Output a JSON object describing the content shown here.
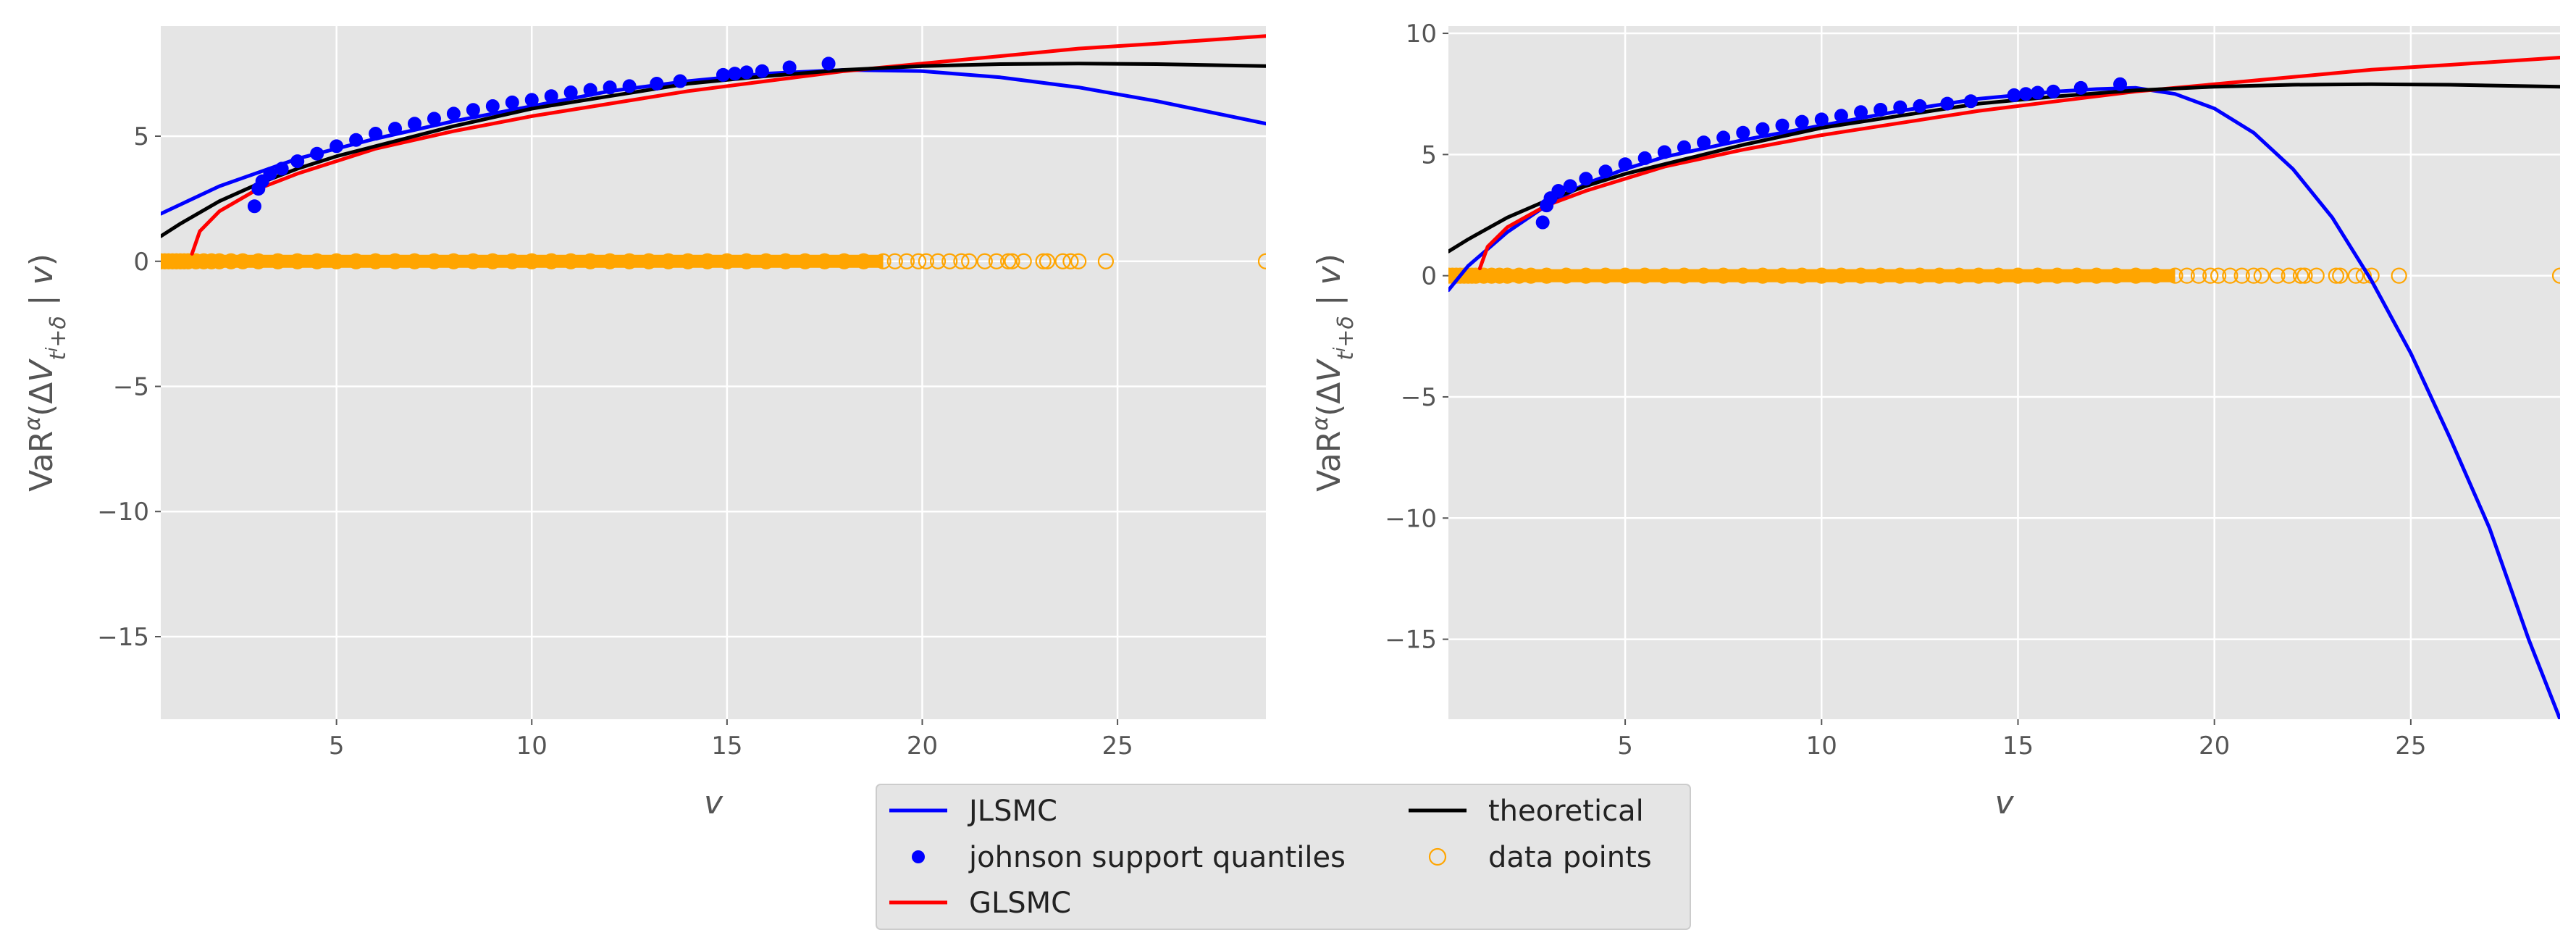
{
  "chart_data": [
    {
      "type": "line",
      "panel": "left",
      "xlabel": "v",
      "ylabel": "VaR^α(ΔV_{t_i+δ} | v)",
      "xlim": [
        0.5,
        28.8
      ],
      "ylim": [
        -18.3,
        9.4
      ],
      "xticks": [
        5,
        10,
        15,
        20,
        25
      ],
      "yticks": [
        -15,
        -10,
        -5,
        0,
        5
      ],
      "grid": true,
      "series": [
        {
          "name": "JLSMC",
          "kind": "line",
          "color": "#0000ff",
          "x": [
            0.5,
            2,
            4,
            6,
            8,
            10,
            12,
            14,
            16,
            18,
            20,
            22,
            24,
            26,
            28.8
          ],
          "y": [
            1.9,
            3.0,
            4.1,
            4.9,
            5.6,
            6.2,
            6.8,
            7.2,
            7.5,
            7.65,
            7.6,
            7.35,
            6.95,
            6.4,
            5.5
          ]
        },
        {
          "name": "johnson support quantiles",
          "kind": "scatter",
          "color": "#0000ff",
          "x": [
            2.9,
            3.0,
            3.1,
            3.3,
            3.6,
            4.0,
            4.5,
            5.0,
            5.5,
            6.0,
            6.5,
            7.0,
            7.5,
            8.0,
            8.5,
            9.0,
            9.5,
            10.0,
            10.5,
            11.0,
            11.5,
            12.0,
            12.5,
            13.2,
            13.8,
            14.9,
            15.2,
            15.5,
            15.9,
            16.6,
            17.6
          ],
          "y": [
            2.2,
            2.9,
            3.2,
            3.5,
            3.7,
            4.0,
            4.3,
            4.6,
            4.85,
            5.1,
            5.3,
            5.5,
            5.7,
            5.9,
            6.05,
            6.2,
            6.35,
            6.45,
            6.6,
            6.75,
            6.85,
            6.95,
            7.0,
            7.1,
            7.2,
            7.45,
            7.5,
            7.55,
            7.6,
            7.75,
            7.9
          ]
        },
        {
          "name": "GLSMC",
          "kind": "line",
          "color": "#ff0000",
          "x": [
            1.3,
            1.5,
            2,
            3,
            4,
            6,
            8,
            10,
            12,
            14,
            16,
            18,
            20,
            22,
            24,
            26,
            28.8
          ],
          "y": [
            0.3,
            1.2,
            2.0,
            2.9,
            3.5,
            4.5,
            5.2,
            5.8,
            6.3,
            6.8,
            7.2,
            7.6,
            7.9,
            8.2,
            8.5,
            8.7,
            9.0
          ]
        },
        {
          "name": "theoretical",
          "kind": "line",
          "color": "#000000",
          "x": [
            0.5,
            1,
            2,
            3,
            4,
            5,
            6,
            8,
            10,
            12,
            14,
            16,
            18,
            20,
            22,
            24,
            26,
            28.8
          ],
          "y": [
            1.0,
            1.5,
            2.4,
            3.1,
            3.7,
            4.2,
            4.6,
            5.4,
            6.1,
            6.6,
            7.1,
            7.4,
            7.65,
            7.8,
            7.88,
            7.9,
            7.88,
            7.8
          ]
        },
        {
          "name": "data points",
          "kind": "scatter-open",
          "color": "#ffa500",
          "x": [
            0.5,
            0.6,
            0.7,
            0.8,
            0.9,
            1.0,
            1.1,
            1.2,
            1.4,
            1.6,
            1.8,
            2.0,
            2.3,
            2.6,
            3.0,
            3.5,
            4.0,
            4.5,
            5.0,
            5.5,
            6.0,
            6.5,
            7.0,
            7.5,
            8.0,
            8.5,
            9.0,
            9.5,
            10.0,
            10.5,
            11.0,
            11.5,
            12.0,
            12.5,
            13.0,
            13.5,
            14.0,
            14.5,
            15.0,
            15.5,
            16.0,
            16.5,
            17.0,
            17.5,
            18.0,
            18.5,
            19.0,
            19.3,
            19.6,
            19.9,
            20.1,
            20.4,
            20.7,
            21.0,
            21.2,
            21.6,
            21.9,
            22.2,
            22.3,
            22.6,
            23.1,
            23.2,
            23.6,
            23.8,
            24.0,
            24.7,
            28.8
          ],
          "y": [
            0,
            0,
            0,
            0,
            0,
            0,
            0,
            0,
            0,
            0,
            0,
            0,
            0,
            0,
            0,
            0,
            0,
            0,
            0,
            0,
            0,
            0,
            0,
            0,
            0,
            0,
            0,
            0,
            0,
            0,
            0,
            0,
            0,
            0,
            0,
            0,
            0,
            0,
            0,
            0,
            0,
            0,
            0,
            0,
            0,
            0,
            0,
            0,
            0,
            0,
            0,
            0,
            0,
            0,
            0,
            0,
            0,
            0,
            0,
            0,
            0,
            0,
            0,
            0,
            0,
            0,
            0
          ]
        }
      ]
    },
    {
      "type": "line",
      "panel": "right",
      "xlabel": "v",
      "ylabel": "VaR^α(ΔV_{t_i+δ} | v)",
      "xlim": [
        0.5,
        28.8
      ],
      "ylim": [
        -18.3,
        10.3
      ],
      "xticks": [
        5,
        10,
        15,
        20,
        25
      ],
      "yticks": [
        -15,
        -10,
        -5,
        0,
        5,
        10
      ],
      "grid": true,
      "series": [
        {
          "name": "JLSMC",
          "kind": "line",
          "color": "#0000ff",
          "x": [
            0.5,
            1,
            2,
            3,
            4,
            5,
            6,
            8,
            10,
            12,
            14,
            16,
            17,
            18,
            19,
            20,
            21,
            22,
            23,
            24,
            25,
            26,
            27,
            28,
            28.8
          ],
          "y": [
            -0.6,
            0.4,
            1.8,
            2.9,
            3.8,
            4.4,
            4.9,
            5.6,
            6.2,
            6.8,
            7.3,
            7.6,
            7.7,
            7.75,
            7.5,
            6.9,
            5.9,
            4.4,
            2.4,
            -0.2,
            -3.2,
            -6.7,
            -10.4,
            -15.0,
            -18.3
          ]
        },
        {
          "name": "johnson support quantiles",
          "kind": "scatter",
          "color": "#0000ff",
          "x": [
            2.9,
            3.0,
            3.1,
            3.3,
            3.6,
            4.0,
            4.5,
            5.0,
            5.5,
            6.0,
            6.5,
            7.0,
            7.5,
            8.0,
            8.5,
            9.0,
            9.5,
            10.0,
            10.5,
            11.0,
            11.5,
            12.0,
            12.5,
            13.2,
            13.8,
            14.9,
            15.2,
            15.5,
            15.9,
            16.6,
            17.6
          ],
          "y": [
            2.2,
            2.9,
            3.2,
            3.5,
            3.7,
            4.0,
            4.3,
            4.6,
            4.85,
            5.1,
            5.3,
            5.5,
            5.7,
            5.9,
            6.05,
            6.2,
            6.35,
            6.45,
            6.6,
            6.75,
            6.85,
            6.95,
            7.0,
            7.1,
            7.2,
            7.45,
            7.5,
            7.55,
            7.6,
            7.75,
            7.9
          ]
        },
        {
          "name": "GLSMC",
          "kind": "line",
          "color": "#ff0000",
          "x": [
            1.3,
            1.5,
            2,
            3,
            4,
            6,
            8,
            10,
            12,
            14,
            16,
            18,
            20,
            22,
            24,
            26,
            28.8
          ],
          "y": [
            0.3,
            1.2,
            2.0,
            2.9,
            3.5,
            4.5,
            5.2,
            5.8,
            6.3,
            6.8,
            7.2,
            7.6,
            7.9,
            8.2,
            8.5,
            8.7,
            9.0
          ]
        },
        {
          "name": "theoretical",
          "kind": "line",
          "color": "#000000",
          "x": [
            0.5,
            1,
            2,
            3,
            4,
            5,
            6,
            8,
            10,
            12,
            14,
            16,
            18,
            20,
            22,
            24,
            26,
            28.8
          ],
          "y": [
            1.0,
            1.5,
            2.4,
            3.1,
            3.7,
            4.2,
            4.6,
            5.4,
            6.1,
            6.6,
            7.1,
            7.4,
            7.65,
            7.8,
            7.88,
            7.9,
            7.88,
            7.8
          ]
        },
        {
          "name": "data points",
          "kind": "scatter-open",
          "color": "#ffa500",
          "x": [
            0.5,
            0.6,
            0.7,
            0.8,
            0.9,
            1.0,
            1.1,
            1.2,
            1.4,
            1.6,
            1.8,
            2.0,
            2.3,
            2.6,
            3.0,
            3.5,
            4.0,
            4.5,
            5.0,
            5.5,
            6.0,
            6.5,
            7.0,
            7.5,
            8.0,
            8.5,
            9.0,
            9.5,
            10.0,
            10.5,
            11.0,
            11.5,
            12.0,
            12.5,
            13.0,
            13.5,
            14.0,
            14.5,
            15.0,
            15.5,
            16.0,
            16.5,
            17.0,
            17.5,
            18.0,
            18.5,
            19.0,
            19.3,
            19.6,
            19.9,
            20.1,
            20.4,
            20.7,
            21.0,
            21.2,
            21.6,
            21.9,
            22.2,
            22.3,
            22.6,
            23.1,
            23.2,
            23.6,
            23.8,
            24.0,
            24.7,
            28.8
          ],
          "y": [
            0,
            0,
            0,
            0,
            0,
            0,
            0,
            0,
            0,
            0,
            0,
            0,
            0,
            0,
            0,
            0,
            0,
            0,
            0,
            0,
            0,
            0,
            0,
            0,
            0,
            0,
            0,
            0,
            0,
            0,
            0,
            0,
            0,
            0,
            0,
            0,
            0,
            0,
            0,
            0,
            0,
            0,
            0,
            0,
            0,
            0,
            0,
            0,
            0,
            0,
            0,
            0,
            0,
            0,
            0,
            0,
            0,
            0,
            0,
            0,
            0,
            0,
            0,
            0,
            0,
            0,
            0
          ]
        }
      ]
    }
  ],
  "legend": {
    "placement": "bottom-center",
    "columns": 2,
    "items": [
      {
        "label": "JLSMC",
        "kind": "line",
        "color": "#0000ff"
      },
      {
        "label": "johnson support quantiles",
        "kind": "scatter",
        "color": "#0000ff"
      },
      {
        "label": "GLSMC",
        "kind": "line",
        "color": "#ff0000"
      },
      {
        "label": "theoretical",
        "kind": "line",
        "color": "#000000"
      },
      {
        "label": "data points",
        "kind": "scatter-open",
        "color": "#ffa500"
      }
    ]
  },
  "style": {
    "plot_background": "#e5e5e5",
    "grid_color": "#ffffff",
    "text_color": "#555555"
  }
}
